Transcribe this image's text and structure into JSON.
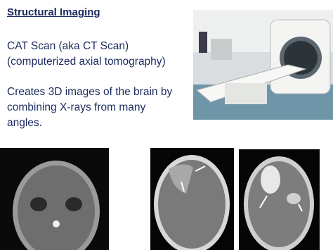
{
  "heading": "Structural Imaging",
  "blocks": [
    [
      "CAT Scan (aka CT Scan)",
      "(computerized axial tomography)"
    ],
    [
      "Creates 3D images of the brain by",
      "combining X-rays from many",
      "angles."
    ]
  ]
}
